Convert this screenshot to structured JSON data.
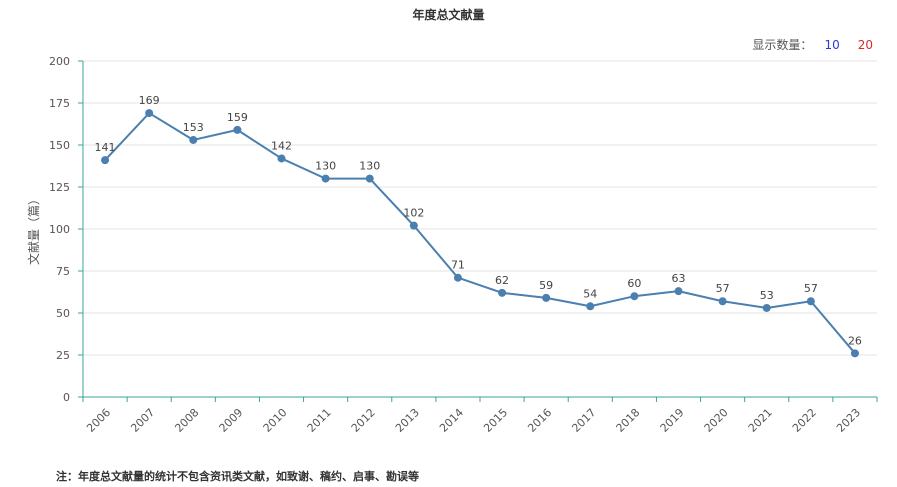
{
  "header": {
    "count_label": "显示数量：",
    "count_options": [
      "10",
      "20"
    ]
  },
  "note": "注：年度总文献量的统计不包含资讯类文献，如致谢、稿约、启事、勘误等",
  "colors": {
    "line": "#4a7fb0",
    "axis": "#3aa693",
    "grid": "#e3e3e3",
    "opt10": "#2b3bd6",
    "opt20": "#d62b2b"
  },
  "chart_data": {
    "type": "line",
    "title": "年度总文献量",
    "xlabel": "",
    "ylabel": "文献量（篇）",
    "categories": [
      "2006",
      "2007",
      "2008",
      "2009",
      "2010",
      "2011",
      "2012",
      "2013",
      "2014",
      "2015",
      "2016",
      "2017",
      "2018",
      "2019",
      "2020",
      "2021",
      "2022",
      "2023"
    ],
    "series": [
      {
        "values": [
          141,
          169,
          153,
          159,
          142,
          130,
          130,
          102,
          71,
          62,
          59,
          54,
          60,
          63,
          57,
          53,
          57,
          26
        ]
      }
    ],
    "ylim": [
      0,
      200
    ],
    "yticks": [
      0,
      25,
      50,
      75,
      100,
      125,
      150,
      175,
      200
    ],
    "grid": true,
    "legend": "none"
  }
}
